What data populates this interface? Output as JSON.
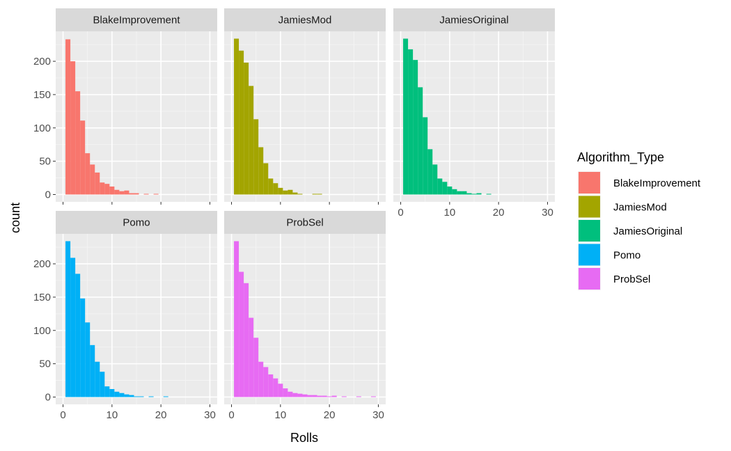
{
  "chart_data": {
    "type": "bar",
    "subtype": "faceted-histogram",
    "xlabel": "Rolls",
    "ylabel": "count",
    "xlim": [
      -1.5,
      31.5
    ],
    "ylim": [
      -11,
      245
    ],
    "x_ticks": [
      0,
      10,
      20,
      30
    ],
    "y_ticks": [
      0,
      50,
      100,
      150,
      200
    ],
    "bin_width": 1,
    "bin_centers": [
      1,
      2,
      3,
      4,
      5,
      6,
      7,
      8,
      9,
      10,
      11,
      12,
      13,
      14,
      15,
      16,
      17,
      18,
      19,
      20,
      21,
      22,
      23,
      24,
      25,
      26,
      27,
      28,
      29
    ],
    "grid": true,
    "legend": {
      "title": "Algorithm_Type",
      "position": "right"
    },
    "series": [
      {
        "name": "BlakeImprovement",
        "color": "#F8766D",
        "values": [
          233,
          200,
          155,
          111,
          62,
          45,
          33,
          18,
          16,
          12,
          7,
          5,
          6,
          2,
          2,
          0,
          1,
          0,
          1,
          0,
          0,
          0,
          0,
          0,
          0,
          0,
          0,
          0,
          0
        ]
      },
      {
        "name": "JamiesMod",
        "color": "#A3A500",
        "values": [
          234,
          216,
          198,
          163,
          113,
          71,
          47,
          24,
          17,
          10,
          6,
          7,
          3,
          1,
          0,
          0,
          1,
          1,
          0,
          0,
          0,
          0,
          0,
          0,
          0,
          0,
          0,
          0,
          0
        ]
      },
      {
        "name": "JamiesOriginal",
        "color": "#00BF7D",
        "values": [
          234,
          218,
          202,
          161,
          116,
          68,
          45,
          24,
          19,
          12,
          8,
          5,
          5,
          2,
          1,
          2,
          0,
          1,
          0,
          0,
          0,
          0,
          0,
          0,
          0,
          0,
          0,
          0,
          0
        ]
      },
      {
        "name": "Pomo",
        "color": "#00B0F6",
        "values": [
          234,
          209,
          185,
          148,
          112,
          78,
          53,
          38,
          16,
          12,
          8,
          6,
          4,
          3,
          1,
          1,
          0,
          1,
          0,
          0,
          1,
          0,
          0,
          0,
          0,
          0,
          0,
          0,
          0
        ]
      },
      {
        "name": "ProbSel",
        "color": "#E76BF3",
        "values": [
          234,
          188,
          171,
          119,
          89,
          53,
          45,
          34,
          28,
          20,
          13,
          8,
          6,
          5,
          4,
          3,
          3,
          2,
          2,
          1,
          2,
          0,
          1,
          0,
          0,
          1,
          0,
          0,
          1
        ]
      }
    ]
  }
}
